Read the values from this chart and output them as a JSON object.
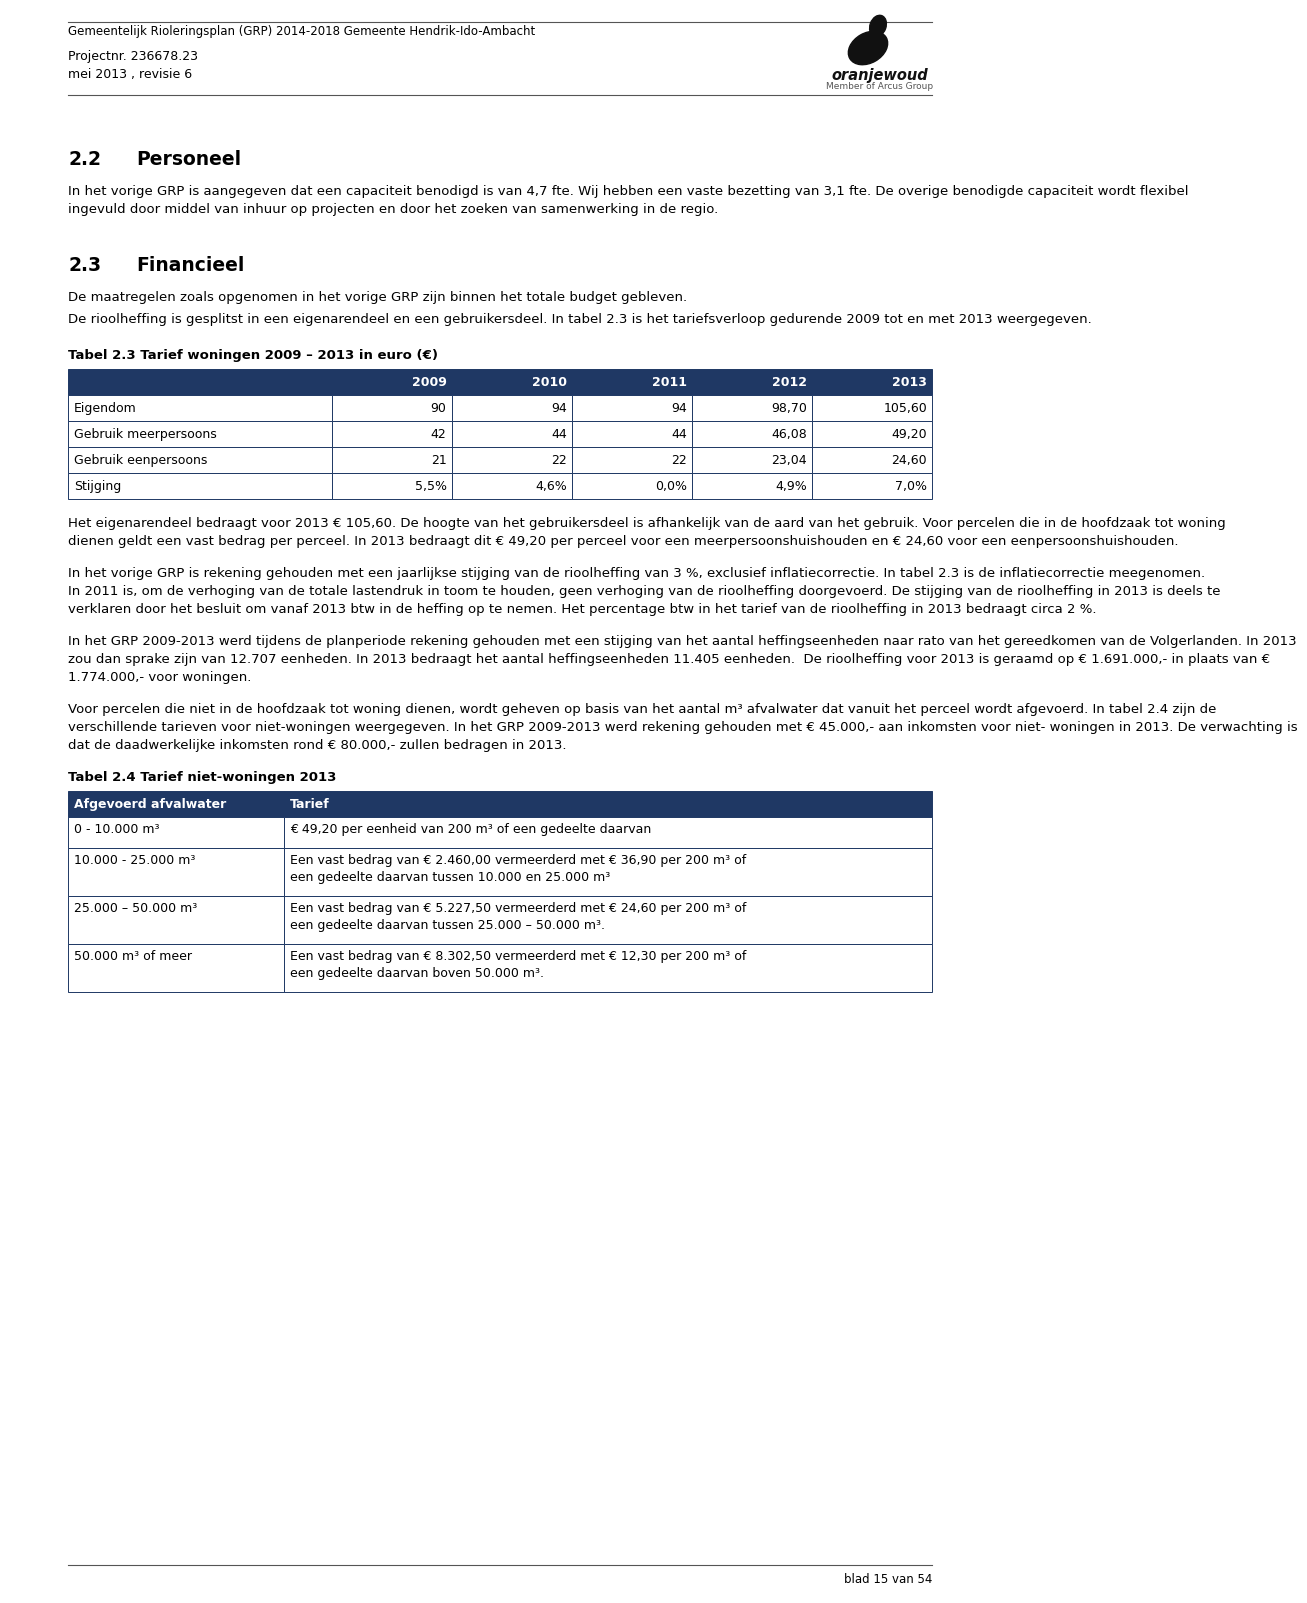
{
  "header_line": "Gemeentelijk Rioleringsplan (GRP) 2014-2018 Gemeente Hendrik-Ido-Ambacht",
  "project_line1": "Projectnr. 236678.23",
  "project_line2": "mei 2013 , revisie 6",
  "sec22_number": "2.2",
  "sec22_title": "Personeel",
  "sec22_para1": "In het vorige GRP is aangegeven dat een capaciteit benodigd is van 4,7 fte. Wij hebben een vaste bezetting van 3,1 fte. De overige benodigde capaciteit wordt flexibel ingevuld door middel van inhuur op projecten en door het zoeken van samenwerking in de regio.",
  "sec23_number": "2.3",
  "sec23_title": "Financieel",
  "sec23_para1a": "De maatregelen zoals opgenomen in het vorige GRP zijn binnen het totale budget gebleven.",
  "sec23_para1b": "De rioolheffing is gesplitst in een eigenarendeel en een gebruikersdeel. In tabel 2.3 is het tariefsverloop gedurende 2009 tot en met 2013 weergegeven.",
  "table1_title": "Tabel 2.3 Tarief woningen 2009 – 2013 in euro (€)",
  "table1_header": [
    "",
    "2009",
    "2010",
    "2011",
    "2012",
    "2013"
  ],
  "table1_rows": [
    [
      "Eigendom",
      "90",
      "94",
      "94",
      "98,70",
      "105,60"
    ],
    [
      "Gebruik meerpersoons",
      "42",
      "44",
      "44",
      "46,08",
      "49,20"
    ],
    [
      "Gebruik eenpersoons",
      "21",
      "22",
      "22",
      "23,04",
      "24,60"
    ],
    [
      "Stijging",
      "5,5%",
      "4,6%",
      "0,0%",
      "4,9%",
      "7,0%"
    ]
  ],
  "table1_header_bg": "#1f3864",
  "table1_header_fg": "#ffffff",
  "table1_border": "#1f3864",
  "para2": "Het eigenarendeel bedraagt voor 2013 € 105,60. De hoogte van het gebruikersdeel is afhankelijk van de aard van het gebruik. Voor percelen die in de hoofdzaak tot woning dienen geldt een vast bedrag per perceel. In 2013 bedraagt dit € 49,20 per perceel voor een meerpersoonshuishouden en € 24,60 voor een eenpersoonshuishouden.",
  "para3": "In het vorige GRP is rekening gehouden met een jaarlijkse stijging van de rioolheffing van 3 %, exclusief inflatiecorrectie. In tabel 2.3 is de inflatiecorrectie meegenomen. In 2011 is, om de verhoging van de totale lastendruk in toom te houden, geen verhoging van de rioolheffing doorgevoerd. De stijging van de rioolheffing in 2013 is deels te verklaren door het besluit om vanaf 2013 btw in de heffing op te nemen. Het percentage btw in het tarief van de rioolheffing in 2013 bedraagt circa 2 %.",
  "para4": "In het GRP 2009-2013 werd tijdens de planperiode rekening gehouden met een stijging van het aantal heffingseenheden naar rato van het gereedkomen van de Volgerlanden. In 2013 zou dan sprake zijn van 12.707 eenheden. In 2013 bedraagt het aantal heffingseenheden 11.405 eenheden.  De rioolheffing voor 2013 is geraamd op € 1.691.000,- in plaats van € 1.774.000,- voor woningen.",
  "para5": "Voor percelen die niet in de hoofdzaak tot woning dienen, wordt geheven op basis van het aantal m³ afvalwater dat vanuit het perceel wordt afgevoerd. In tabel 2.4 zijn de verschillende tarieven voor niet-woningen weergegeven. In het GRP 2009-2013 werd rekening gehouden met € 45.000,- aan inkomsten voor niet- woningen in 2013. De verwachting is dat de daadwerkelijke inkomsten rond € 80.000,- zullen bedragen in 2013.",
  "table2_title": "Tabel 2.4 Tarief niet-woningen 2013",
  "table2_col1_header": "Afgevoerd afvalwater",
  "table2_col2_header": "Tarief",
  "table2_rows": [
    [
      "0 - 10.000 m³",
      "€ 49,20 per eenheid van 200 m³ of een gedeelte daarvan"
    ],
    [
      "10.000 - 25.000 m³",
      "Een vast bedrag van € 2.460,00 vermeerderd met € 36,90 per 200 m³ of\neen gedeelte daarvan tussen 10.000 en 25.000 m³"
    ],
    [
      "25.000 – 50.000 m³",
      "Een vast bedrag van € 5.227,50 vermeerderd met € 24,60 per 200 m³ of\neen gedeelte daarvan tussen 25.000 – 50.000 m³."
    ],
    [
      "50.000 m³ of meer",
      "Een vast bedrag van € 8.302,50 vermeerderd met € 12,30 per 200 m³ of\neen gedeelte daarvan boven 50.000 m³."
    ]
  ],
  "table2_header_bg": "#1f3864",
  "table2_header_fg": "#ffffff",
  "table2_border": "#1f3864",
  "footer_text": "blad 15 van 54",
  "page_bg": "#ffffff",
  "text_color": "#000000"
}
